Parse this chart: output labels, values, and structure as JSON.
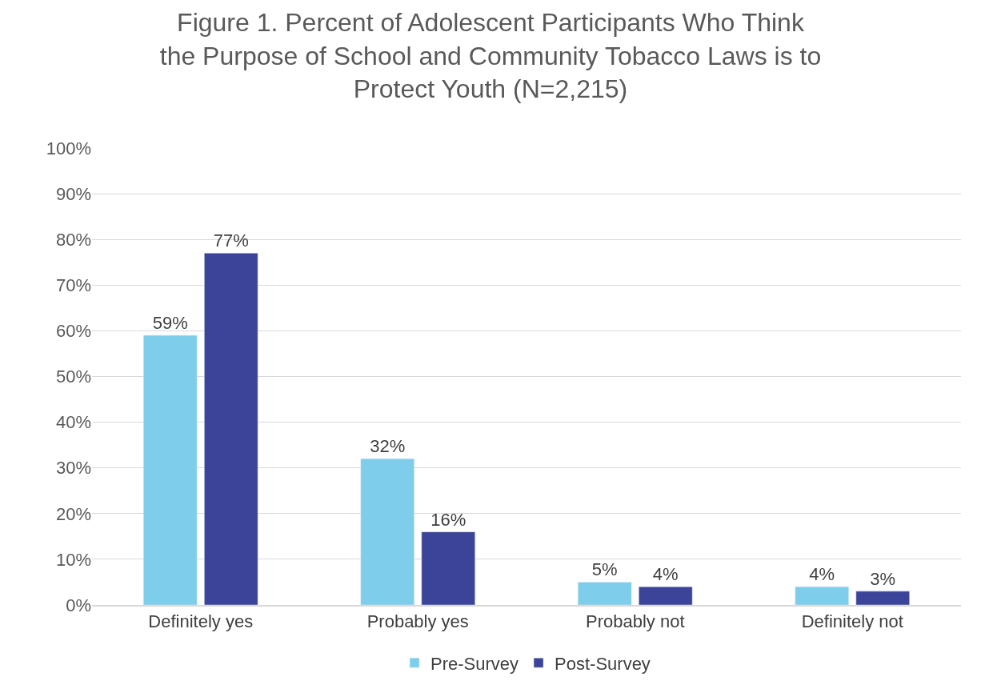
{
  "chart_data": {
    "type": "bar",
    "title": "Figure 1. Percent of Adolescent Participants Who Think the Purpose of School and Community Tobacco Laws is to Protect Youth (N=2,215)",
    "categories": [
      "Definitely yes",
      "Probably yes",
      "Probably not",
      "Definitely not"
    ],
    "series": [
      {
        "name": "Pre-Survey",
        "color": "#7dcdeb",
        "values": [
          59,
          32,
          5,
          4
        ],
        "value_labels": [
          "59%",
          "32%",
          "5%",
          "4%"
        ]
      },
      {
        "name": "Post-Survey",
        "color": "#3c4499",
        "values": [
          77,
          16,
          4,
          3
        ],
        "value_labels": [
          "77%",
          "16%",
          "4%",
          "3%"
        ]
      }
    ],
    "ylim": [
      0,
      100
    ],
    "yticks": [
      {
        "value": 0,
        "label": "0%"
      },
      {
        "value": 10,
        "label": "10%"
      },
      {
        "value": 20,
        "label": "20%"
      },
      {
        "value": 30,
        "label": "30%"
      },
      {
        "value": 40,
        "label": "40%"
      },
      {
        "value": 50,
        "label": "50%"
      },
      {
        "value": 60,
        "label": "60%"
      },
      {
        "value": 70,
        "label": "70%"
      },
      {
        "value": 80,
        "label": "80%"
      },
      {
        "value": 90,
        "label": "90%"
      },
      {
        "value": 100,
        "label": "100%"
      }
    ],
    "grid": "y",
    "legend": "bottom"
  }
}
